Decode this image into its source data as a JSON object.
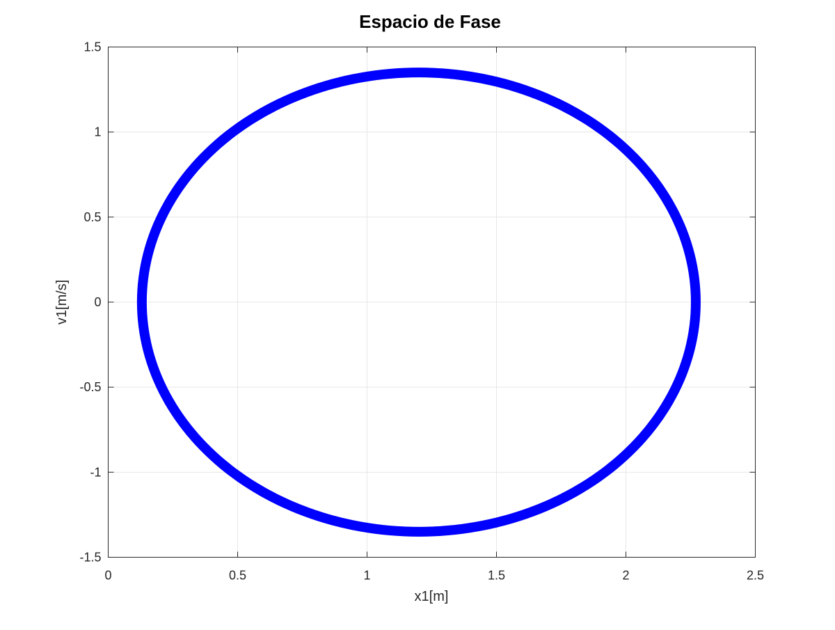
{
  "chart_data": {
    "type": "line",
    "title": "Espacio de Fase",
    "xlabel": "x1[m]",
    "ylabel": "v1[m/s]",
    "xlim": [
      0,
      2.5
    ],
    "ylim": [
      -1.5,
      1.5
    ],
    "xticks": [
      0,
      0.5,
      1,
      1.5,
      2,
      2.5
    ],
    "yticks": [
      -1.5,
      -1,
      -0.5,
      0,
      0.5,
      1,
      1.5
    ],
    "xtick_labels": [
      "0",
      "0.5",
      "1",
      "1.5",
      "2",
      "2.5"
    ],
    "ytick_labels": [
      "-1.5",
      "-1",
      "-0.5",
      "0",
      "0.5",
      "1",
      "1.5"
    ],
    "grid": true,
    "series": [
      {
        "color": "#0000ff",
        "x": [
          2.27,
          2.254,
          2.206,
          2.128,
          2.022,
          1.89,
          1.737,
          1.565,
          1.38,
          1.186,
          0.988,
          0.79,
          0.599,
          0.419,
          0.256,
          0.113,
          0.0,
          0.0,
          0.0
        ],
        "y": [
          0.0,
          0.239,
          0.468,
          0.68,
          0.869,
          1.029,
          1.156,
          1.249,
          1.306,
          1.326,
          1.309,
          1.256,
          1.169,
          1.049,
          0.9,
          0.726,
          0.53,
          0.0,
          0.0
        ]
      }
    ]
  }
}
